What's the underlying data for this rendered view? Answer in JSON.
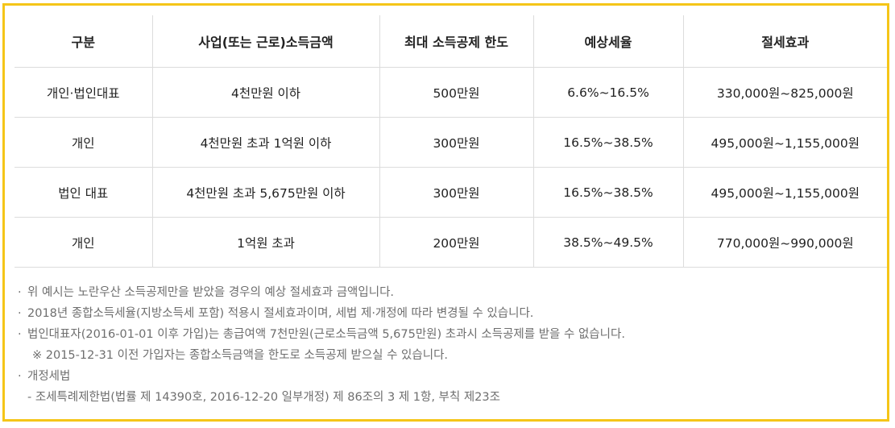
{
  "table": {
    "headers": [
      "구분",
      "사업(또는 근로)소득금액",
      "최대 소득공제 한도",
      "예상세율",
      "절세효과"
    ],
    "rows": [
      [
        "개인·법인대표",
        "4천만원 이하",
        "500만원",
        "6.6%~16.5%",
        "330,000원~825,000원"
      ],
      [
        "개인",
        "4천만원 초과 1억원 이하",
        "300만원",
        "16.5%~38.5%",
        "495,000원~1,155,000원"
      ],
      [
        "법인 대표",
        "4천만원 초과 5,675만원 이하",
        "300만원",
        "16.5%~38.5%",
        "495,000원~1,155,000원"
      ],
      [
        "개인",
        "1억원 초과",
        "200만원",
        "38.5%~49.5%",
        "770,000원~990,000원"
      ]
    ]
  },
  "notes": {
    "bullet": "·",
    "line1": "위 예시는 노란우산 소득공제만을 받았을 경우의 예상 절세효과 금액입니다.",
    "line2": "2018년 종합소득세율(지방소득세 포함) 적용시 절세효과이며, 세법 제·개정에 따라 변경될 수 있습니다.",
    "line3": "법인대표자(2016-01-01 이후 가입)는 총급여액 7천만원(근로소득금액 5,675만원) 초과시 소득공제를 받을 수 없습니다.",
    "line4": "※ 2015-12-31 이전 가입자는 종합소득금액을 한도로 소득공제 받으실 수 있습니다.",
    "line5": "개정세법",
    "line6": "- 조세특례제한법(법률 제 14390호, 2016-12-20 일부개정) 제 86조의 3 제 1항, 부칙 제23조"
  },
  "colors": {
    "frame_border": "#f5c518",
    "table_border": "#dcdcdc",
    "note_text": "#6e6e6e"
  }
}
